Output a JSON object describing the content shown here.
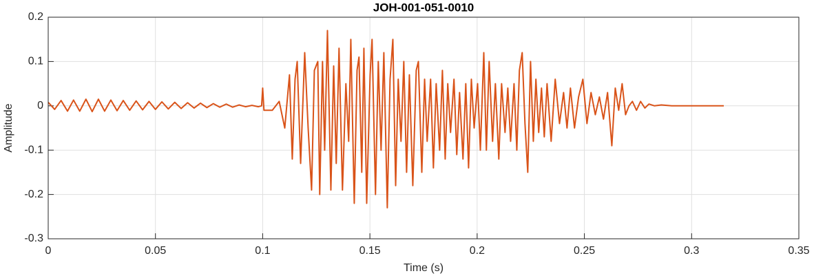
{
  "chart_data": {
    "type": "line",
    "title": "JOH-001-051-0010",
    "xlabel": "Time (s)",
    "ylabel": "Amplitude",
    "x": [
      0,
      0.003,
      0.006,
      0.009,
      0.0118,
      0.0147,
      0.0176,
      0.0205,
      0.0234,
      0.0263,
      0.0292,
      0.0321,
      0.035,
      0.038,
      0.041,
      0.044,
      0.047,
      0.05,
      0.053,
      0.056,
      0.059,
      0.062,
      0.065,
      0.068,
      0.071,
      0.074,
      0.077,
      0.08,
      0.083,
      0.086,
      0.089,
      0.092,
      0.095,
      0.098,
      0.0995,
      0.1,
      0.1006,
      0.1045,
      0.1077,
      0.1103,
      0.1125,
      0.1138,
      0.1151,
      0.1161,
      0.1177,
      0.1196,
      0.1212,
      0.1228,
      0.1241,
      0.1257,
      0.1266,
      0.1279,
      0.1289,
      0.1302,
      0.1318,
      0.1331,
      0.1343,
      0.1356,
      0.1372,
      0.1388,
      0.1401,
      0.1411,
      0.1427,
      0.144,
      0.1449,
      0.1462,
      0.1472,
      0.1485,
      0.1501,
      0.151,
      0.1526,
      0.1539,
      0.1552,
      0.1565,
      0.1581,
      0.1594,
      0.1607,
      0.162,
      0.1632,
      0.1645,
      0.1658,
      0.1671,
      0.1684,
      0.17,
      0.1716,
      0.1726,
      0.1742,
      0.1755,
      0.1767,
      0.1783,
      0.1796,
      0.1809,
      0.1825,
      0.1838,
      0.1851,
      0.1863,
      0.1876,
      0.1892,
      0.1905,
      0.1918,
      0.1934,
      0.1947,
      0.196,
      0.1973,
      0.1986,
      0.2002,
      0.2015,
      0.2031,
      0.2043,
      0.2056,
      0.2072,
      0.2085,
      0.2101,
      0.2114,
      0.213,
      0.2143,
      0.2156,
      0.2172,
      0.2185,
      0.2197,
      0.221,
      0.2223,
      0.2236,
      0.2249,
      0.2262,
      0.2274,
      0.2287,
      0.23,
      0.2313,
      0.2326,
      0.2345,
      0.2364,
      0.2384,
      0.2403,
      0.2419,
      0.2435,
      0.2454,
      0.2473,
      0.2493,
      0.2512,
      0.2531,
      0.2551,
      0.257,
      0.2589,
      0.2608,
      0.2628,
      0.2644,
      0.266,
      0.2676,
      0.2692,
      0.2708,
      0.2724,
      0.2743,
      0.2762,
      0.2782,
      0.2801,
      0.2827,
      0.2859,
      0.2907,
      0.3,
      0.315
    ],
    "series": [
      {
        "name": "Amplitude",
        "color": "#d95319",
        "values": [
          0.008,
          -0.008,
          0.012,
          -0.012,
          0.013,
          -0.012,
          0.015,
          -0.013,
          0.015,
          -0.012,
          0.013,
          -0.011,
          0.012,
          -0.01,
          0.011,
          -0.009,
          0.01,
          -0.008,
          0.009,
          -0.007,
          0.008,
          -0.006,
          0.007,
          -0.005,
          0.006,
          -0.004,
          0.005,
          -0.003,
          0.004,
          -0.003,
          0.002,
          -0.002,
          0.001,
          -0.002,
          0,
          0.04,
          -0.01,
          -0.01,
          0.01,
          -0.05,
          0.07,
          -0.12,
          0.06,
          0.1,
          -0.13,
          0.12,
          -0.05,
          -0.19,
          0.08,
          0.1,
          -0.2,
          0.1,
          -0.1,
          0.17,
          -0.19,
          0.09,
          -0.13,
          0.13,
          -0.19,
          0.05,
          -0.08,
          0.15,
          -0.22,
          0.08,
          0.11,
          -0.15,
          0.13,
          -0.22,
          0.07,
          0.15,
          -0.2,
          0.1,
          -0.1,
          0.12,
          -0.23,
          0.06,
          0.15,
          -0.18,
          0.06,
          -0.08,
          0.1,
          -0.15,
          0.07,
          -0.18,
          0.08,
          0.1,
          -0.15,
          0.06,
          -0.08,
          0.06,
          -0.14,
          0.05,
          -0.1,
          0.08,
          -0.12,
          0.05,
          -0.06,
          0.06,
          -0.11,
          0.03,
          -0.12,
          0.05,
          -0.14,
          0.06,
          -0.05,
          0.05,
          -0.1,
          0.12,
          -0.1,
          0.1,
          -0.08,
          0.05,
          -0.12,
          0.05,
          -0.06,
          0.04,
          -0.08,
          0.05,
          -0.1,
          0.08,
          0.12,
          -0.04,
          -0.15,
          0.1,
          -0.08,
          0.06,
          -0.06,
          0.04,
          -0.07,
          0.05,
          -0.08,
          0.06,
          -0.04,
          0.03,
          -0.05,
          0.04,
          -0.05,
          0.02,
          0.06,
          -0.04,
          0.03,
          -0.02,
          0.02,
          -0.03,
          0.03,
          -0.09,
          0.04,
          -0.01,
          0.05,
          -0.02,
          0,
          0.01,
          -0.01,
          0.01,
          -0.005,
          0.004,
          0,
          0.002,
          0,
          0,
          0
        ]
      }
    ],
    "xlim": [
      0,
      0.35
    ],
    "xticks": [
      0,
      0.05,
      0.1,
      0.15,
      0.2,
      0.25,
      0.3,
      0.35
    ],
    "ylim": [
      -0.3,
      0.2
    ],
    "yticks": [
      -0.3,
      -0.2,
      -0.1,
      0,
      0.1,
      0.2
    ],
    "grid": true
  }
}
